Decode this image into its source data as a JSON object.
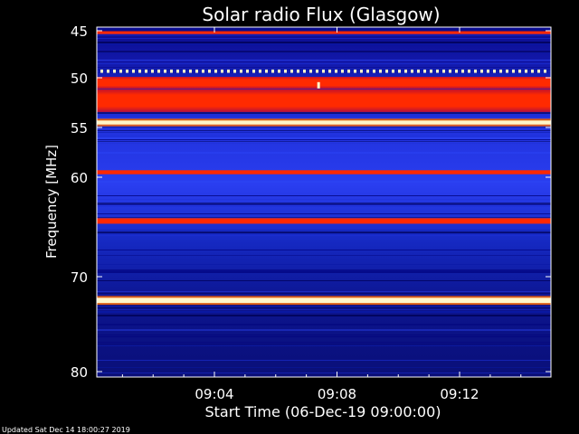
{
  "chart_data": {
    "type": "heatmap",
    "title": "Solar radio Flux (Glasgow)",
    "xlabel": "Start Time (06-Dec-19 09:00:00)",
    "ylabel": "Frequency [MHz]",
    "ylim": [
      45,
      80
    ],
    "xlim_minutes": [
      0,
      15
    ],
    "yticks": [
      "45",
      "50",
      "55",
      "60",
      "70",
      "80"
    ],
    "xticks": [
      "09:04",
      "09:08",
      "09:12"
    ],
    "colors": {
      "background": "#000000",
      "low": "#00006e",
      "mid": "#2a39f0",
      "high": "#ff2800",
      "peak": "#fff6c8"
    },
    "bands": [
      {
        "mhz": 45.2,
        "width": 0.3,
        "level": "high"
      },
      {
        "mhz": 49.3,
        "width": 0.35,
        "level": "peak",
        "dashed": true
      },
      {
        "mhz": 50.5,
        "width": 1.2,
        "level": "high"
      },
      {
        "mhz": 52.3,
        "width": 2.3,
        "level": "high"
      },
      {
        "mhz": 54.5,
        "width": 0.4,
        "level": "peak"
      },
      {
        "mhz": 59.5,
        "width": 0.4,
        "level": "high"
      },
      {
        "mhz": 64.4,
        "width": 0.55,
        "level": "high"
      },
      {
        "mhz": 72.5,
        "width": 0.55,
        "level": "peak"
      }
    ],
    "bursts": [
      {
        "minute": 7.4,
        "mhz": 50.8
      }
    ]
  },
  "footer": {
    "updated": "Updated Sat Dec 14 18:00:27 2019"
  }
}
